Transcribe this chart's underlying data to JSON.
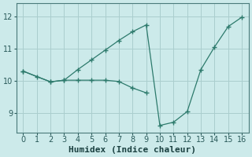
{
  "line1_x": [
    0,
    1,
    2,
    3,
    4,
    5,
    6,
    7,
    8,
    9
  ],
  "line1_y": [
    10.3,
    10.13,
    9.97,
    10.02,
    10.02,
    10.02,
    10.02,
    9.98,
    9.78,
    9.63
  ],
  "line2_x": [
    0,
    2,
    3,
    4,
    5,
    6,
    7,
    8,
    9,
    10,
    11,
    12,
    13,
    14,
    15,
    16
  ],
  "line2_y": [
    10.3,
    9.97,
    10.02,
    10.35,
    10.65,
    10.95,
    11.25,
    11.52,
    11.73,
    8.62,
    8.72,
    9.05,
    10.35,
    11.05,
    11.68,
    11.97
  ],
  "line_color": "#2d7a6c",
  "bg_color": "#cceaea",
  "grid_color": "#aacece",
  "xlabel": "Humidex (Indice chaleur)",
  "xlabel_fontsize": 8,
  "xlim": [
    -0.5,
    16.5
  ],
  "ylim": [
    8.4,
    12.4
  ],
  "xticks": [
    0,
    1,
    2,
    3,
    4,
    5,
    6,
    7,
    8,
    9,
    10,
    11,
    12,
    13,
    14,
    15,
    16
  ],
  "yticks": [
    9,
    10,
    11,
    12
  ],
  "tick_fontsize": 7
}
